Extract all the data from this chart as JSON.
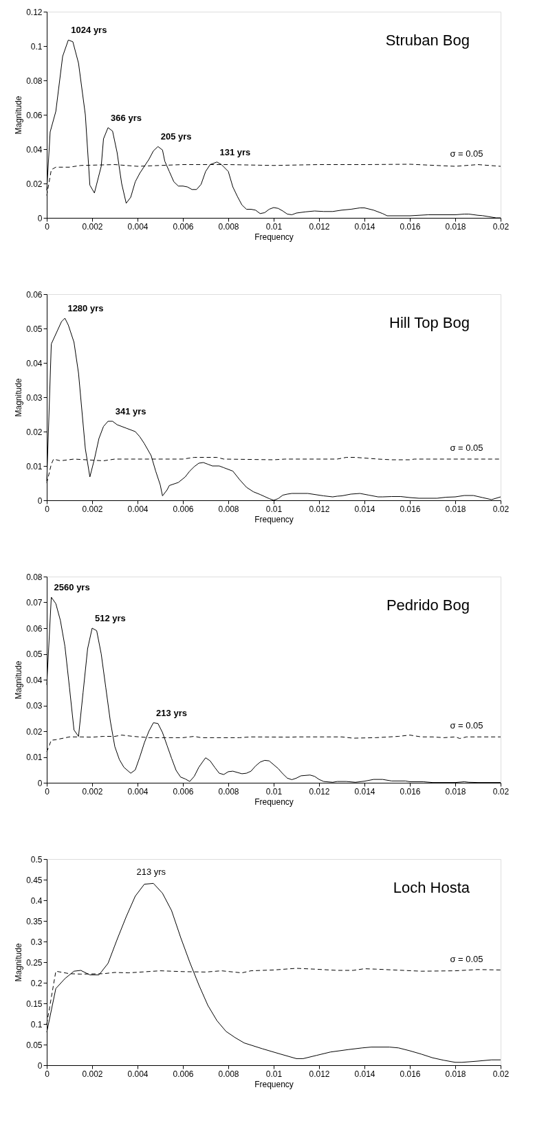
{
  "chart_data": [
    {
      "type": "line",
      "title": "Struban Bog",
      "xlabel": "Frequency",
      "ylabel": "Magnitude",
      "xlim": [
        0,
        0.02
      ],
      "ylim": [
        0,
        0.12
      ],
      "xticks": [
        0,
        0.002,
        0.004,
        0.006,
        0.008,
        0.01,
        0.012,
        0.014,
        0.016,
        0.018,
        0.02
      ],
      "yticks": [
        0,
        0.02,
        0.04,
        0.06,
        0.08,
        0.1,
        0.12
      ],
      "grid": false,
      "series": [
        {
          "color": "#000000",
          "line_style": "solid",
          "x": [
            0,
            0.00015,
            0.0004,
            0.0007,
            0.00095,
            0.00115,
            0.0014,
            0.0017,
            0.0019,
            0.0021,
            0.0024,
            0.0025,
            0.0027,
            0.0029,
            0.0031,
            0.0033,
            0.0035,
            0.0037,
            0.0039,
            0.0041,
            0.0043,
            0.0045,
            0.0047,
            0.0049,
            0.0051,
            0.0052,
            0.0054,
            0.0056,
            0.0058,
            0.006,
            0.0062,
            0.0064,
            0.0066,
            0.0068,
            0.007,
            0.0072,
            0.0075,
            0.0077,
            0.008,
            0.0082,
            0.0084,
            0.0086,
            0.0088,
            0.009,
            0.0092,
            0.0094,
            0.0096,
            0.0098,
            0.01,
            0.0102,
            0.0104,
            0.0106,
            0.0108,
            0.011,
            0.0114,
            0.0118,
            0.0122,
            0.0126,
            0.013,
            0.0134,
            0.0138,
            0.014,
            0.0144,
            0.0148,
            0.015,
            0.016,
            0.0168,
            0.018,
            0.0184,
            0.0186,
            0.019,
            0.0192,
            0.0198,
            0.02
          ],
          "values": [
            0.016,
            0.05,
            0.062,
            0.094,
            0.1035,
            0.1025,
            0.09,
            0.06,
            0.019,
            0.0145,
            0.03,
            0.046,
            0.0525,
            0.0505,
            0.038,
            0.02,
            0.0085,
            0.012,
            0.021,
            0.026,
            0.03,
            0.034,
            0.039,
            0.0415,
            0.0395,
            0.033,
            0.027,
            0.021,
            0.0185,
            0.0185,
            0.018,
            0.0165,
            0.0165,
            0.0195,
            0.027,
            0.031,
            0.0325,
            0.031,
            0.027,
            0.018,
            0.0125,
            0.0075,
            0.005,
            0.005,
            0.0045,
            0.0025,
            0.003,
            0.005,
            0.006,
            0.0055,
            0.004,
            0.0022,
            0.0018,
            0.0028,
            0.0035,
            0.004,
            0.0037,
            0.0037,
            0.0045,
            0.005,
            0.0058,
            0.0058,
            0.0045,
            0.0025,
            0.0012,
            0.0012,
            0.0018,
            0.0018,
            0.0022,
            0.0022,
            0.0015,
            0.0013,
            0,
            0
          ]
        },
        {
          "color": "#000000",
          "line_style": "dashed",
          "x": [
            0,
            0.0002,
            0.0004,
            0.001,
            0.0015,
            0.003,
            0.004,
            0.006,
            0.008,
            0.01,
            0.012,
            0.014,
            0.016,
            0.018,
            0.019,
            0.02
          ],
          "values": [
            0.013,
            0.028,
            0.0295,
            0.0295,
            0.0305,
            0.031,
            0.03,
            0.031,
            0.031,
            0.0305,
            0.031,
            0.031,
            0.0312,
            0.03,
            0.031,
            0.03
          ]
        }
      ],
      "annotations": [
        {
          "text": "1024 yrs",
          "x": 0.00095,
          "y": 0.1035
        },
        {
          "text": "366 yrs",
          "x": 0.0027,
          "y": 0.0525
        },
        {
          "text": "205 yrs",
          "x": 0.0049,
          "y": 0.0415
        },
        {
          "text": "131 yrs",
          "x": 0.0075,
          "y": 0.0325
        },
        {
          "text": "σ = 0.05",
          "x": 0.0185,
          "y": 0.031
        }
      ]
    },
    {
      "type": "line",
      "title": "Hill Top Bog",
      "xlabel": "Frequency",
      "ylabel": "Magnitude",
      "xlim": [
        0,
        0.02
      ],
      "ylim": [
        0,
        0.06
      ],
      "xticks": [
        0,
        0.002,
        0.004,
        0.006,
        0.008,
        0.01,
        0.012,
        0.014,
        0.016,
        0.018,
        0.02
      ],
      "yticks": [
        0,
        0.01,
        0.02,
        0.03,
        0.04,
        0.05,
        0.06
      ],
      "grid": false,
      "series": [
        {
          "color": "#000000",
          "line_style": "solid",
          "x": [
            0,
            0.0002,
            0.00065,
            0.0008,
            0.00095,
            0.0012,
            0.0014,
            0.0017,
            0.0019,
            0.0021,
            0.0023,
            0.0025,
            0.0027,
            0.0029,
            0.0031,
            0.0035,
            0.0039,
            0.0041,
            0.0043,
            0.0046,
            0.0048,
            0.005,
            0.0051,
            0.0053,
            0.0054,
            0.0058,
            0.0061,
            0.0063,
            0.0065,
            0.0067,
            0.0069,
            0.0071,
            0.0073,
            0.0076,
            0.0078,
            0.0082,
            0.0085,
            0.0088,
            0.0091,
            0.0094,
            0.0098,
            0.01,
            0.0102,
            0.0104,
            0.0106,
            0.0108,
            0.0115,
            0.0122,
            0.0126,
            0.0128,
            0.013,
            0.0134,
            0.0138,
            0.0142,
            0.0146,
            0.0148,
            0.0152,
            0.0156,
            0.016,
            0.0164,
            0.0172,
            0.0176,
            0.018,
            0.0184,
            0.0188,
            0.0192,
            0.0196,
            0.02
          ],
          "values": [
            0.0055,
            0.0455,
            0.052,
            0.053,
            0.051,
            0.046,
            0.037,
            0.015,
            0.0068,
            0.012,
            0.018,
            0.0215,
            0.023,
            0.023,
            0.022,
            0.021,
            0.02,
            0.0185,
            0.0165,
            0.013,
            0.0085,
            0.0045,
            0.0013,
            0.003,
            0.0043,
            0.0052,
            0.0068,
            0.0085,
            0.0098,
            0.0108,
            0.011,
            0.0105,
            0.01,
            0.01,
            0.0095,
            0.0085,
            0.006,
            0.0038,
            0.0025,
            0.0017,
            0.0005,
            0,
            0.0005,
            0.0015,
            0.0018,
            0.002,
            0.002,
            0.0013,
            0.001,
            0.0012,
            0.0013,
            0.0018,
            0.002,
            0.0015,
            0.001,
            0.001,
            0.0011,
            0.0011,
            0.0008,
            0.0006,
            0.0006,
            0.0009,
            0.001,
            0.0014,
            0.0014,
            0.0008,
            0.0002,
            0.001
          ]
        },
        {
          "color": "#000000",
          "line_style": "dashed",
          "x": [
            0,
            0.0002,
            0.0003,
            0.0006,
            0.0012,
            0.0025,
            0.003,
            0.006,
            0.0065,
            0.0075,
            0.0078,
            0.01,
            0.0105,
            0.0128,
            0.0132,
            0.0136,
            0.0146,
            0.0152,
            0.016,
            0.0162,
            0.0168,
            0.02
          ],
          "values": [
            0.005,
            0.0105,
            0.012,
            0.0115,
            0.012,
            0.0115,
            0.012,
            0.012,
            0.0125,
            0.0125,
            0.012,
            0.0118,
            0.012,
            0.012,
            0.0125,
            0.0125,
            0.012,
            0.0118,
            0.0118,
            0.012,
            0.012,
            0.012
          ]
        }
      ],
      "annotations": [
        {
          "text": "1280 yrs",
          "x": 0.0008,
          "y": 0.053
        },
        {
          "text": "341 yrs",
          "x": 0.0029,
          "y": 0.023
        },
        {
          "text": "σ = 0.05",
          "x": 0.0185,
          "y": 0.012
        }
      ]
    },
    {
      "type": "line",
      "title": "Pedrido Bog",
      "xlabel": "Frequency",
      "ylabel": "Magnitude",
      "xlim": [
        0,
        0.02
      ],
      "ylim": [
        0,
        0.08
      ],
      "xticks": [
        0,
        0.002,
        0.004,
        0.006,
        0.008,
        0.01,
        0.012,
        0.014,
        0.016,
        0.018,
        0.02
      ],
      "yticks": [
        0,
        0.01,
        0.02,
        0.03,
        0.04,
        0.05,
        0.06,
        0.07,
        0.08
      ],
      "grid": false,
      "series": [
        {
          "color": "#000000",
          "line_style": "solid",
          "x": [
            0,
            0.0002,
            0.0004,
            0.0006,
            0.0008,
            0.001,
            0.0012,
            0.0014,
            0.0016,
            0.0018,
            0.002,
            0.0022,
            0.0024,
            0.0026,
            0.0028,
            0.003,
            0.0032,
            0.0034,
            0.0037,
            0.0039,
            0.0041,
            0.0043,
            0.0045,
            0.0047,
            0.0049,
            0.0051,
            0.0053,
            0.0055,
            0.0057,
            0.0059,
            0.0061,
            0.0063,
            0.0065,
            0.0067,
            0.0069,
            0.007,
            0.0072,
            0.0074,
            0.0076,
            0.0078,
            0.008,
            0.0082,
            0.0086,
            0.0088,
            0.009,
            0.0092,
            0.0094,
            0.0096,
            0.0098,
            0.0102,
            0.0104,
            0.0106,
            0.0108,
            0.011,
            0.0112,
            0.0116,
            0.0118,
            0.012,
            0.0122,
            0.0126,
            0.0128,
            0.0132,
            0.0136,
            0.014,
            0.0144,
            0.0148,
            0.0152,
            0.0158,
            0.016,
            0.0166,
            0.017,
            0.018,
            0.0184,
            0.0186,
            0.019,
            0.02
          ],
          "values": [
            0.038,
            0.072,
            0.0695,
            0.063,
            0.053,
            0.037,
            0.0205,
            0.018,
            0.035,
            0.052,
            0.06,
            0.059,
            0.05,
            0.037,
            0.024,
            0.014,
            0.009,
            0.006,
            0.0037,
            0.005,
            0.01,
            0.0155,
            0.02,
            0.0233,
            0.023,
            0.0195,
            0.0145,
            0.0095,
            0.0048,
            0.0022,
            0.0015,
            0.0005,
            0.0025,
            0.006,
            0.0085,
            0.0097,
            0.0085,
            0.006,
            0.0037,
            0.0032,
            0.0043,
            0.0045,
            0.0035,
            0.0037,
            0.0045,
            0.0065,
            0.008,
            0.0087,
            0.0085,
            0.0055,
            0.0035,
            0.0018,
            0.0012,
            0.0018,
            0.0027,
            0.003,
            0.0025,
            0.0013,
            0.0005,
            0.0002,
            0.0005,
            0.0005,
            0.0002,
            0.0006,
            0.0013,
            0.0013,
            0.0007,
            0.0007,
            0.0004,
            0.0004,
            0.0001,
            0.0001,
            0.0004,
            0.0002,
            0.0001,
            0.0001
          ]
        },
        {
          "color": "#000000",
          "line_style": "dashed",
          "x": [
            0,
            0.0002,
            0.0004,
            0.001,
            0.0015,
            0.002,
            0.0025,
            0.003,
            0.0033,
            0.0038,
            0.0045,
            0.006,
            0.0065,
            0.0068,
            0.0075,
            0.0085,
            0.009,
            0.0108,
            0.011,
            0.013,
            0.0135,
            0.0145,
            0.0155,
            0.016,
            0.0165,
            0.017,
            0.0175,
            0.018,
            0.0182,
            0.0185,
            0.02
          ],
          "values": [
            0.012,
            0.0165,
            0.0167,
            0.0178,
            0.0178,
            0.0177,
            0.018,
            0.018,
            0.0185,
            0.018,
            0.0175,
            0.0175,
            0.018,
            0.0175,
            0.0175,
            0.0175,
            0.0178,
            0.0177,
            0.0178,
            0.0178,
            0.0173,
            0.0175,
            0.018,
            0.0185,
            0.0178,
            0.0178,
            0.0175,
            0.0178,
            0.0172,
            0.0178,
            0.0178
          ]
        }
      ],
      "annotations": [
        {
          "text": "2560 yrs",
          "x": 0.0002,
          "y": 0.072
        },
        {
          "text": "512 yrs",
          "x": 0.002,
          "y": 0.06
        },
        {
          "text": "213 yrs",
          "x": 0.0047,
          "y": 0.0233
        },
        {
          "text": "σ = 0.05",
          "x": 0.0185,
          "y": 0.018
        }
      ]
    },
    {
      "type": "line",
      "title": "Loch Hosta",
      "xlabel": "Frequency",
      "ylabel": "Magnitude",
      "xlim": [
        0,
        0.02
      ],
      "ylim": [
        0,
        0.5
      ],
      "xticks": [
        0,
        0.002,
        0.004,
        0.006,
        0.008,
        0.01,
        0.012,
        0.014,
        0.016,
        0.018,
        0.02
      ],
      "yticks": [
        0,
        0.05,
        0.1,
        0.15,
        0.2,
        0.25,
        0.3,
        0.35,
        0.4,
        0.45,
        0.5
      ],
      "grid": false,
      "series": [
        {
          "color": "#000000",
          "line_style": "solid",
          "x": [
            0,
            0.0004,
            0.0008,
            0.0012,
            0.0015,
            0.0019,
            0.0023,
            0.0027,
            0.0031,
            0.0035,
            0.0039,
            0.0043,
            0.0047,
            0.0051,
            0.0055,
            0.0059,
            0.0063,
            0.0067,
            0.0071,
            0.0075,
            0.0079,
            0.0083,
            0.0087,
            0.0095,
            0.0103,
            0.011,
            0.0113,
            0.0119,
            0.0125,
            0.0133,
            0.0139,
            0.0143,
            0.0151,
            0.0155,
            0.016,
            0.0165,
            0.017,
            0.0175,
            0.018,
            0.0183,
            0.019,
            0.0196,
            0.02
          ],
          "values": [
            0.08,
            0.186,
            0.21,
            0.228,
            0.23,
            0.219,
            0.219,
            0.247,
            0.305,
            0.36,
            0.41,
            0.439,
            0.441,
            0.417,
            0.375,
            0.31,
            0.25,
            0.195,
            0.145,
            0.108,
            0.082,
            0.067,
            0.054,
            0.04,
            0.027,
            0.016,
            0.016,
            0.024,
            0.032,
            0.038,
            0.042,
            0.044,
            0.044,
            0.042,
            0.035,
            0.027,
            0.018,
            0.012,
            0.007,
            0.007,
            0.01,
            0.013,
            0.013
          ]
        },
        {
          "color": "#000000",
          "line_style": "dashed",
          "x": [
            0,
            0.0004,
            0.001,
            0.0015,
            0.0025,
            0.003,
            0.0036,
            0.005,
            0.006,
            0.007,
            0.0077,
            0.0086,
            0.009,
            0.01,
            0.011,
            0.0118,
            0.0128,
            0.0135,
            0.014,
            0.0145,
            0.0165,
            0.018,
            0.019,
            0.02
          ],
          "values": [
            0.1,
            0.228,
            0.222,
            0.221,
            0.222,
            0.225,
            0.224,
            0.229,
            0.227,
            0.226,
            0.229,
            0.224,
            0.229,
            0.231,
            0.235,
            0.233,
            0.23,
            0.23,
            0.234,
            0.233,
            0.228,
            0.229,
            0.232,
            0.231
          ]
        }
      ],
      "annotations": [
        {
          "text": "213 yrs",
          "x": 0.0046,
          "y": 0.441
        },
        {
          "text": "σ = 0.05",
          "x": 0.0185,
          "y": 0.23
        }
      ]
    }
  ]
}
